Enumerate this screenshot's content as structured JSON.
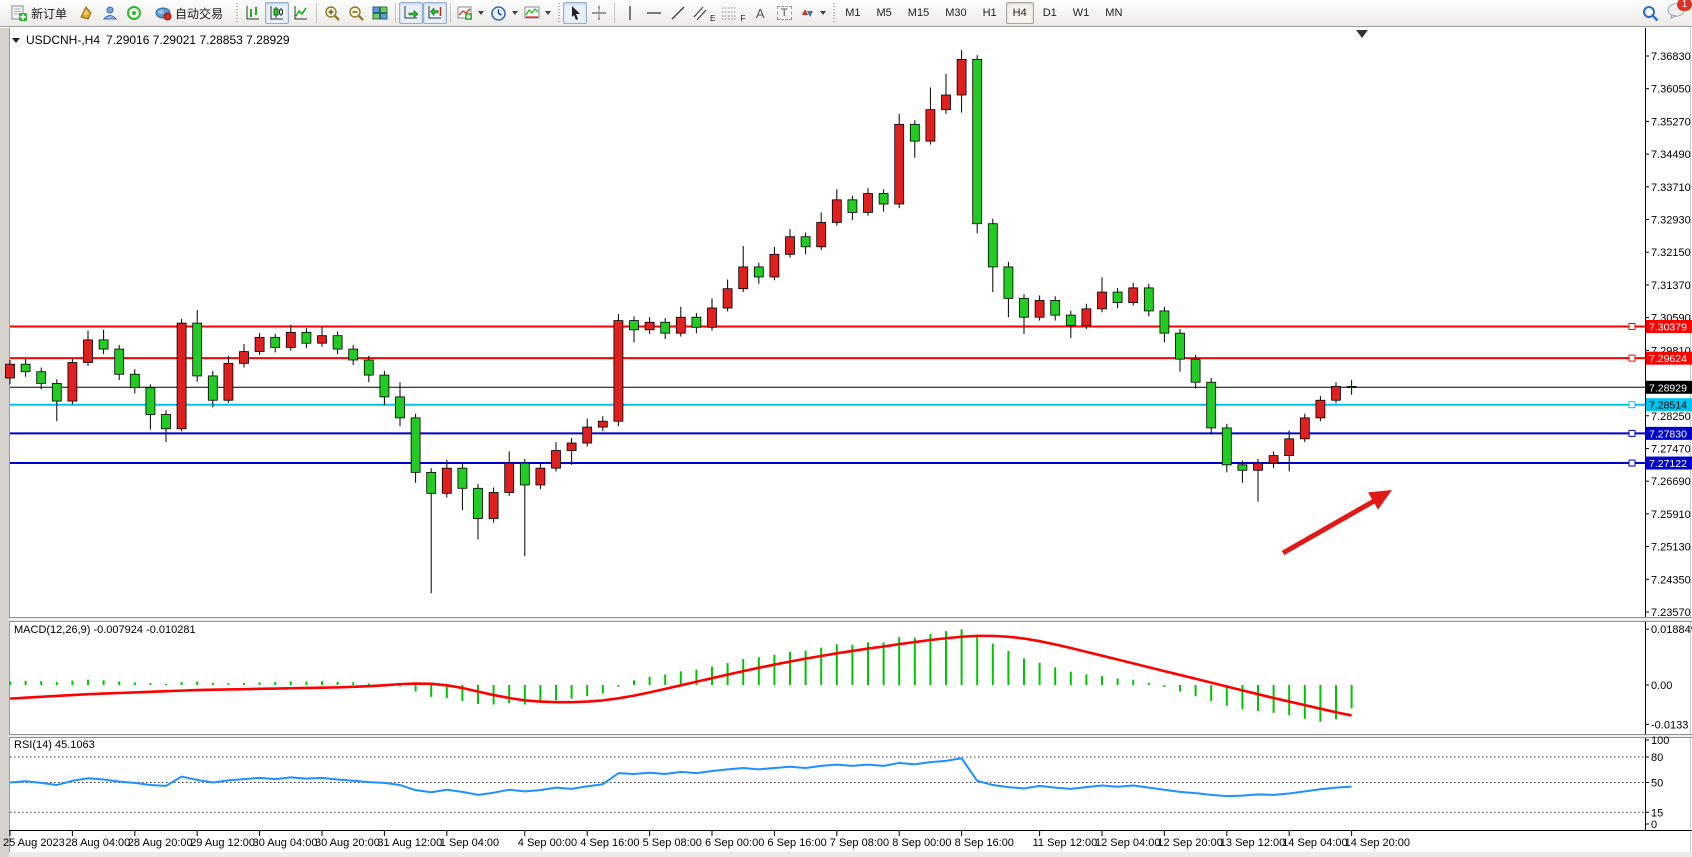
{
  "app": {
    "toolbar": {
      "new_order": "新订单",
      "auto_trading": "自动交易",
      "letters": {
        "channel": "E",
        "fibo": "F",
        "text_tool": "A",
        "label_tool": "T"
      },
      "timeframes": [
        "M1",
        "M5",
        "M15",
        "M30",
        "H1",
        "H4",
        "D1",
        "W1",
        "MN"
      ],
      "active_timeframe": "H4",
      "notification_badge": "1"
    }
  },
  "chart": {
    "title": {
      "symbol": "USDCNH-,H4",
      "ohlc": "7.29016 7.29021 7.28853 7.28929"
    },
    "colors": {
      "up_body": "#e01f1f",
      "down_body": "#22cc22",
      "wick": "#000000",
      "line_red": "#ff0000",
      "line_cyan": "#00c4f0",
      "line_blue": "#0000cc",
      "price_line": "#000000",
      "macd_hist": "#00c400",
      "macd_signal": "#ff0000",
      "rsi_line": "#1e90ff",
      "arrow": "#e01818"
    },
    "price_axis": {
      "min": 7.2357,
      "max": 7.3683,
      "ticks": [
        "7.36830",
        "7.36050",
        "7.35270",
        "7.34490",
        "7.33710",
        "7.32930",
        "7.32150",
        "7.31370",
        "7.30590",
        "7.29810",
        "7.28250",
        "7.27470",
        "7.26690",
        "7.25910",
        "7.25130",
        "7.24350",
        "7.23570"
      ]
    },
    "hlines": [
      {
        "price": 7.30379,
        "label": "7.30379",
        "color": "#ff0000",
        "text_color": "#ffffff",
        "width": 2,
        "handle": true
      },
      {
        "price": 7.29624,
        "label": "7.29624",
        "color": "#ff0000",
        "text_color": "#ffffff",
        "width": 2,
        "handle": true
      },
      {
        "price": 7.28929,
        "label": "7.28929",
        "color": "#000000",
        "text_color": "#ffffff",
        "width": 1,
        "handle": false
      },
      {
        "price": 7.28514,
        "label": "7.28514",
        "color": "#00c4f0",
        "text_color": "#000000",
        "width": 2,
        "handle": true
      },
      {
        "price": 7.2783,
        "label": "7.27830",
        "color": "#0000cc",
        "text_color": "#ffffff",
        "width": 2,
        "handle": true
      },
      {
        "price": 7.27122,
        "label": "7.27122",
        "color": "#0000cc",
        "text_color": "#ffffff",
        "width": 2,
        "handle": true
      }
    ],
    "candles": [
      [
        7.2915,
        7.2958,
        7.29,
        7.2948
      ],
      [
        7.2948,
        7.2962,
        7.2918,
        7.293
      ],
      [
        7.293,
        7.294,
        7.2888,
        7.2902
      ],
      [
        7.2902,
        7.2912,
        7.2812,
        7.286
      ],
      [
        7.286,
        7.2962,
        7.2852,
        7.2952
      ],
      [
        7.2952,
        7.3028,
        7.2944,
        7.3006
      ],
      [
        7.3006,
        7.303,
        7.2972,
        7.2984
      ],
      [
        7.2984,
        7.2994,
        7.291,
        7.2924
      ],
      [
        7.2924,
        7.2936,
        7.2878,
        7.2892
      ],
      [
        7.2892,
        7.29,
        7.2792,
        7.2828
      ],
      [
        7.2828,
        7.2838,
        7.2762,
        7.2794
      ],
      [
        7.2794,
        7.3056,
        7.2788,
        7.3046
      ],
      [
        7.3046,
        7.3077,
        7.2906,
        7.292
      ],
      [
        7.292,
        7.2932,
        7.2845,
        7.2862
      ],
      [
        7.2862,
        7.2968,
        7.2856,
        7.295
      ],
      [
        7.295,
        7.2996,
        7.294,
        7.2978
      ],
      [
        7.2978,
        7.3022,
        7.297,
        7.3012
      ],
      [
        7.3012,
        7.302,
        7.2976,
        7.2988
      ],
      [
        7.2988,
        7.3042,
        7.298,
        7.3024
      ],
      [
        7.3024,
        7.3034,
        7.2986,
        7.2998
      ],
      [
        7.2998,
        7.3038,
        7.299,
        7.3016
      ],
      [
        7.3016,
        7.3026,
        7.2972,
        7.2984
      ],
      [
        7.2984,
        7.2994,
        7.2946,
        7.2958
      ],
      [
        7.2958,
        7.2968,
        7.2905,
        7.2922
      ],
      [
        7.2922,
        7.2932,
        7.285,
        7.287
      ],
      [
        7.287,
        7.2905,
        7.28,
        7.282
      ],
      [
        7.282,
        7.283,
        7.2665,
        7.269
      ],
      [
        7.269,
        7.27,
        7.2402,
        7.264
      ],
      [
        7.264,
        7.272,
        7.263,
        7.27
      ],
      [
        7.27,
        7.271,
        7.26,
        7.2652
      ],
      [
        7.2652,
        7.2662,
        7.253,
        7.258
      ],
      [
        7.258,
        7.2654,
        7.257,
        7.2642
      ],
      [
        7.2642,
        7.274,
        7.2634,
        7.2712
      ],
      [
        7.2712,
        7.2722,
        7.249,
        7.266
      ],
      [
        7.266,
        7.2712,
        7.265,
        7.27
      ],
      [
        7.27,
        7.2762,
        7.2692,
        7.2742
      ],
      [
        7.2742,
        7.2772,
        7.2708,
        7.276
      ],
      [
        7.276,
        7.2818,
        7.2752,
        7.2798
      ],
      [
        7.2798,
        7.2824,
        7.2788,
        7.2812
      ],
      [
        7.2812,
        7.3068,
        7.28,
        7.3052
      ],
      [
        7.3052,
        7.3062,
        7.3,
        7.303
      ],
      [
        7.303,
        7.306,
        7.302,
        7.3048
      ],
      [
        7.3048,
        7.3058,
        7.3008,
        7.3022
      ],
      [
        7.3022,
        7.3085,
        7.3014,
        7.306
      ],
      [
        7.306,
        7.307,
        7.3022,
        7.3036
      ],
      [
        7.3036,
        7.3105,
        7.3028,
        7.3082
      ],
      [
        7.3082,
        7.315,
        7.3074,
        7.3128
      ],
      [
        7.3128,
        7.323,
        7.312,
        7.318
      ],
      [
        7.318,
        7.319,
        7.314,
        7.3156
      ],
      [
        7.3156,
        7.3228,
        7.3148,
        7.321
      ],
      [
        7.321,
        7.327,
        7.3202,
        7.3252
      ],
      [
        7.3252,
        7.3262,
        7.321,
        7.3228
      ],
      [
        7.3228,
        7.331,
        7.322,
        7.3286
      ],
      [
        7.3286,
        7.3365,
        7.3278,
        7.334
      ],
      [
        7.334,
        7.335,
        7.3292,
        7.331
      ],
      [
        7.331,
        7.3368,
        7.3302,
        7.3355
      ],
      [
        7.3355,
        7.3365,
        7.3312,
        7.333
      ],
      [
        7.333,
        7.3545,
        7.332,
        7.352
      ],
      [
        7.352,
        7.353,
        7.344,
        7.348
      ],
      [
        7.348,
        7.3608,
        7.3472,
        7.3555
      ],
      [
        7.3555,
        7.364,
        7.3545,
        7.359
      ],
      [
        7.359,
        7.3697,
        7.3548,
        7.3675
      ],
      [
        7.3675,
        7.3685,
        7.326,
        7.3283
      ],
      [
        7.3283,
        7.3295,
        7.312,
        7.318
      ],
      [
        7.318,
        7.3192,
        7.306,
        7.3105
      ],
      [
        7.3105,
        7.3115,
        7.302,
        7.306
      ],
      [
        7.306,
        7.3112,
        7.3052,
        7.31
      ],
      [
        7.31,
        7.311,
        7.3052,
        7.3065
      ],
      [
        7.3065,
        7.3075,
        7.301,
        7.304
      ],
      [
        7.304,
        7.3092,
        7.3032,
        7.308
      ],
      [
        7.308,
        7.3155,
        7.3072,
        7.312
      ],
      [
        7.312,
        7.313,
        7.3082,
        7.3095
      ],
      [
        7.3095,
        7.3142,
        7.3088,
        7.313
      ],
      [
        7.313,
        7.314,
        7.3062,
        7.3075
      ],
      [
        7.3075,
        7.3085,
        7.3,
        7.3022
      ],
      [
        7.3022,
        7.3032,
        7.293,
        7.296
      ],
      [
        7.296,
        7.297,
        7.289,
        7.2905
      ],
      [
        7.2905,
        7.2915,
        7.278,
        7.2796
      ],
      [
        7.2796,
        7.2806,
        7.269,
        7.2708
      ],
      [
        7.2708,
        7.2718,
        7.2665,
        7.2695
      ],
      [
        7.2695,
        7.2722,
        7.262,
        7.2712
      ],
      [
        7.2712,
        7.274,
        7.27,
        7.273
      ],
      [
        7.273,
        7.279,
        7.2692,
        7.277
      ],
      [
        7.277,
        7.283,
        7.2762,
        7.282
      ],
      [
        7.282,
        7.2872,
        7.2812,
        7.2862
      ],
      [
        7.2862,
        7.2905,
        7.2855,
        7.2895
      ],
      [
        7.2895,
        7.291,
        7.2875,
        7.28929
      ]
    ],
    "time_axis": [
      {
        "label": "25 Aug 2023",
        "bar": 0
      },
      {
        "label": "28 Aug 04:00",
        "bar": 4
      },
      {
        "label": "28 Aug 20:00",
        "bar": 8
      },
      {
        "label": "29 Aug 12:00",
        "bar": 12
      },
      {
        "label": "30 Aug 04:00",
        "bar": 16
      },
      {
        "label": "30 Aug 20:00",
        "bar": 20
      },
      {
        "label": "31 Aug 12:00",
        "bar": 24
      },
      {
        "label": "1 Sep 04:00",
        "bar": 28
      },
      {
        "label": "4 Sep 00:00",
        "bar": 33
      },
      {
        "label": "4 Sep 16:00",
        "bar": 37
      },
      {
        "label": "5 Sep 08:00",
        "bar": 41
      },
      {
        "label": "6 Sep 00:00",
        "bar": 45
      },
      {
        "label": "6 Sep 16:00",
        "bar": 49
      },
      {
        "label": "7 Sep 08:00",
        "bar": 53
      },
      {
        "label": "8 Sep 00:00",
        "bar": 57
      },
      {
        "label": "8 Sep 16:00",
        "bar": 61
      },
      {
        "label": "11 Sep 12:00",
        "bar": 66
      },
      {
        "label": "12 Sep 04:00",
        "bar": 70
      },
      {
        "label": "12 Sep 20:00",
        "bar": 74
      },
      {
        "label": "13 Sep 12:00",
        "bar": 78
      },
      {
        "label": "14 Sep 04:00",
        "bar": 82
      },
      {
        "label": "14 Sep 20:00",
        "bar": 86
      }
    ]
  },
  "macd": {
    "label": "MACD(12,26,9) -0.007924 -0.010281",
    "ticks": [
      {
        "v": 0.018849,
        "label": "0.018849"
      },
      {
        "v": 0,
        "label": "0.00"
      },
      {
        "v": -0.0133,
        "label": "-0.0133"
      }
    ],
    "histogram": [
      0.0012,
      0.0014,
      0.0013,
      0.001,
      0.0015,
      0.0018,
      0.0016,
      0.0012,
      0.0009,
      0.0006,
      0.0004,
      0.001,
      0.0012,
      0.0008,
      0.0006,
      0.0007,
      0.0009,
      0.001,
      0.0012,
      0.0011,
      0.0013,
      0.0011,
      0.0009,
      0.0005,
      0.0002,
      -0.0005,
      -0.0022,
      -0.004,
      -0.0044,
      -0.0054,
      -0.0064,
      -0.0066,
      -0.0062,
      -0.0066,
      -0.006,
      -0.0052,
      -0.0046,
      -0.0038,
      -0.0028,
      -0.0006,
      0.0016,
      0.0028,
      0.0036,
      0.0046,
      0.0052,
      0.0062,
      0.0074,
      0.0088,
      0.0094,
      0.0102,
      0.0112,
      0.0116,
      0.0126,
      0.0138,
      0.0136,
      0.0144,
      0.0144,
      0.0162,
      0.016,
      0.0172,
      0.0182,
      0.018849,
      0.017,
      0.014,
      0.0115,
      0.009,
      0.0075,
      0.006,
      0.0045,
      0.0036,
      0.003,
      0.0022,
      0.0018,
      0.0008,
      -0.0006,
      -0.0022,
      -0.0038,
      -0.0054,
      -0.007,
      -0.0082,
      -0.0088,
      -0.0094,
      -0.0102,
      -0.0114,
      -0.0124,
      -0.0116,
      -0.007924
    ],
    "signal": [
      -0.0046,
      -0.0043,
      -0.004,
      -0.0037,
      -0.0034,
      -0.0031,
      -0.0029,
      -0.0027,
      -0.0025,
      -0.0023,
      -0.0021,
      -0.0019,
      -0.0017,
      -0.0016,
      -0.0015,
      -0.0014,
      -0.0013,
      -0.0012,
      -0.0011,
      -0.001,
      -0.0009,
      -0.0008,
      -0.0006,
      -0.0004,
      -0.0001,
      0.0003,
      0.0005,
      0.0004,
      -0.0001,
      -0.001,
      -0.0022,
      -0.0034,
      -0.0044,
      -0.0052,
      -0.0056,
      -0.0058,
      -0.0058,
      -0.0056,
      -0.0052,
      -0.0045,
      -0.0036,
      -0.0025,
      -0.0013,
      -0.0001,
      0.0011,
      0.0023,
      0.0035,
      0.0047,
      0.0058,
      0.0069,
      0.0079,
      0.0089,
      0.0098,
      0.0107,
      0.0115,
      0.0123,
      0.013,
      0.0138,
      0.0145,
      0.0152,
      0.0158,
      0.0163,
      0.0166,
      0.0166,
      0.0163,
      0.0157,
      0.0148,
      0.0137,
      0.0125,
      0.0112,
      0.0099,
      0.0086,
      0.0073,
      0.006,
      0.0047,
      0.0034,
      0.0021,
      0.0008,
      -0.0005,
      -0.0018,
      -0.0031,
      -0.0044,
      -0.0056,
      -0.0068,
      -0.008,
      -0.0092,
      -0.010281
    ]
  },
  "rsi": {
    "label": "RSI(14) 45.1063",
    "ticks": [
      "100",
      "80",
      "50",
      "15",
      "0"
    ],
    "levels": [
      80,
      50,
      15
    ],
    "values": [
      50,
      51.5,
      49.5,
      47,
      52,
      55,
      53.5,
      51,
      49.5,
      47,
      46,
      57,
      53,
      50,
      52.5,
      54,
      55.5,
      54,
      56,
      54.5,
      55.5,
      53.5,
      52,
      50.5,
      49.5,
      47,
      41,
      38.5,
      41.5,
      39,
      35.5,
      38,
      41.5,
      39.5,
      41,
      44,
      42.5,
      45.5,
      48,
      61,
      60,
      61.5,
      60,
      62.5,
      61,
      63.5,
      65.5,
      67,
      65.5,
      67,
      68.5,
      67,
      69.5,
      71,
      69.5,
      71,
      69.5,
      73,
      71.5,
      74,
      75.5,
      78.5,
      52,
      47,
      44.5,
      43,
      46,
      44,
      42.5,
      44.5,
      46.5,
      45,
      46.5,
      44,
      41.5,
      39,
      37.5,
      35.5,
      34,
      34.5,
      36,
      35.5,
      37,
      39.5,
      42,
      44,
      45.1
    ]
  }
}
